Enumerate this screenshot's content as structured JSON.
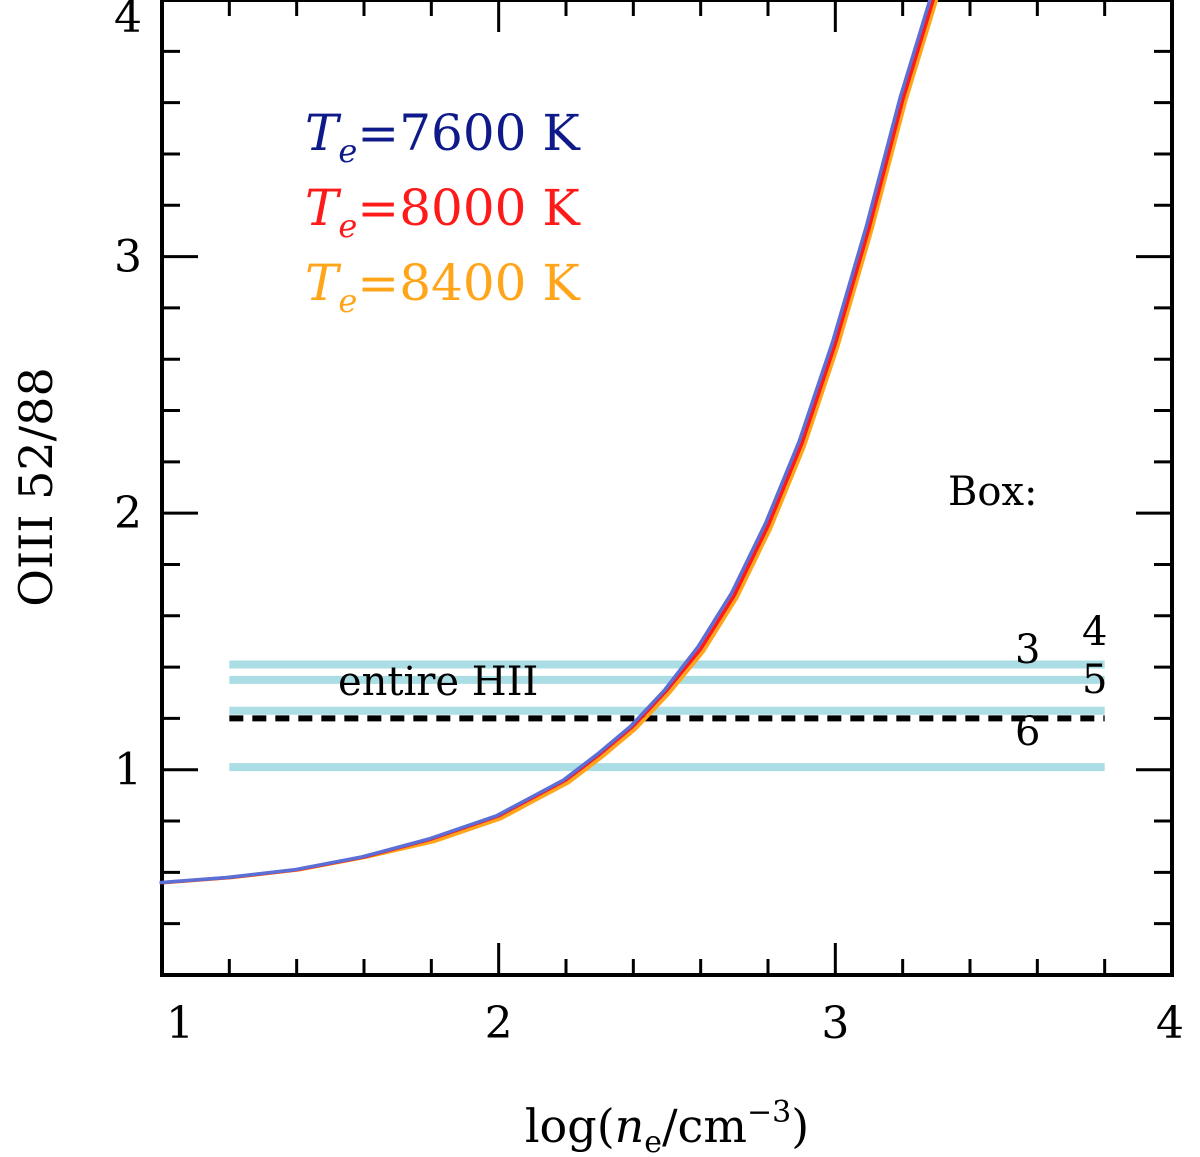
{
  "chart_data": {
    "type": "line",
    "title": "",
    "xlabel": {
      "prefix": "log(",
      "var": "n",
      "sub": "e",
      "unit": "/cm",
      "sup": "−3",
      "suffix": ")"
    },
    "ylabel": "OIII 52/88",
    "xlim": [
      1,
      4
    ],
    "ylim": [
      0.2,
      4
    ],
    "xticks": [
      1,
      2,
      3,
      4
    ],
    "xtick_labels": [
      "1",
      "2",
      "3",
      "4"
    ],
    "yticks": [
      1,
      2,
      3,
      4
    ],
    "ytick_labels": [
      "1",
      "2",
      "3",
      "4"
    ],
    "x_minor_step": 0.2,
    "y_minor_step": 0.2,
    "grid": false,
    "legend_position": "top-left",
    "series": [
      {
        "name": "Te=7600 K",
        "symbol": "T",
        "sub": "e",
        "value": "=7600 K",
        "color": "#5b6fd6",
        "text_color": "#0f1a8a",
        "x": [
          1.0,
          1.2,
          1.4,
          1.6,
          1.8,
          2.0,
          2.1,
          2.2,
          2.3,
          2.4,
          2.5,
          2.6,
          2.7,
          2.8,
          2.9,
          3.0,
          3.1,
          3.2,
          3.3
        ],
        "y": [
          0.56,
          0.58,
          0.61,
          0.66,
          0.73,
          0.82,
          0.89,
          0.96,
          1.06,
          1.17,
          1.31,
          1.48,
          1.69,
          1.96,
          2.28,
          2.67,
          3.12,
          3.62,
          4.05
        ]
      },
      {
        "name": "Te=8000 K",
        "symbol": "T",
        "sub": "e",
        "value": "=8000 K",
        "color": "#ff1a1a",
        "text_color": "#ff1a1a",
        "x": [
          1.0,
          1.2,
          1.4,
          1.6,
          1.8,
          2.0,
          2.1,
          2.2,
          2.3,
          2.4,
          2.5,
          2.6,
          2.7,
          2.8,
          2.9,
          3.0,
          3.1,
          3.2,
          3.3
        ],
        "y": [
          0.56,
          0.58,
          0.61,
          0.66,
          0.73,
          0.82,
          0.89,
          0.96,
          1.06,
          1.17,
          1.31,
          1.47,
          1.68,
          1.95,
          2.27,
          2.66,
          3.11,
          3.61,
          4.04
        ]
      },
      {
        "name": "Te=8400 K",
        "symbol": "T",
        "sub": "e",
        "value": "=8400 K",
        "color": "#ffa51a",
        "text_color": "#ffa51a",
        "x": [
          1.0,
          1.2,
          1.4,
          1.6,
          1.8,
          2.0,
          2.1,
          2.2,
          2.3,
          2.4,
          2.5,
          2.6,
          2.7,
          2.8,
          2.9,
          3.0,
          3.1,
          3.2,
          3.3
        ],
        "y": [
          0.56,
          0.58,
          0.61,
          0.66,
          0.72,
          0.81,
          0.88,
          0.95,
          1.05,
          1.16,
          1.3,
          1.46,
          1.67,
          1.94,
          2.26,
          2.65,
          3.1,
          3.6,
          4.03
        ]
      }
    ],
    "reference_lines": [
      {
        "name": "box-4",
        "label": "4",
        "y": 1.41,
        "x_range": [
          1.2,
          3.8
        ],
        "style": "solid",
        "color": "#aadde4"
      },
      {
        "name": "box-3",
        "label": "3",
        "y": 1.35,
        "x_range": [
          1.2,
          3.8
        ],
        "style": "solid",
        "color": "#aadde4"
      },
      {
        "name": "box-5",
        "label": "5",
        "y": 1.23,
        "x_range": [
          1.2,
          3.8
        ],
        "style": "solid",
        "color": "#aadde4"
      },
      {
        "name": "box-6",
        "label": "6",
        "y": 1.01,
        "x_range": [
          1.2,
          3.8
        ],
        "style": "solid",
        "color": "#aadde4"
      },
      {
        "name": "entire-hii",
        "label": "entire HII",
        "y": 1.2,
        "x_range": [
          1.2,
          3.8
        ],
        "style": "dashed",
        "color": "#000000"
      }
    ],
    "annotations": [
      {
        "name": "box-heading",
        "text": "Box:"
      }
    ]
  }
}
